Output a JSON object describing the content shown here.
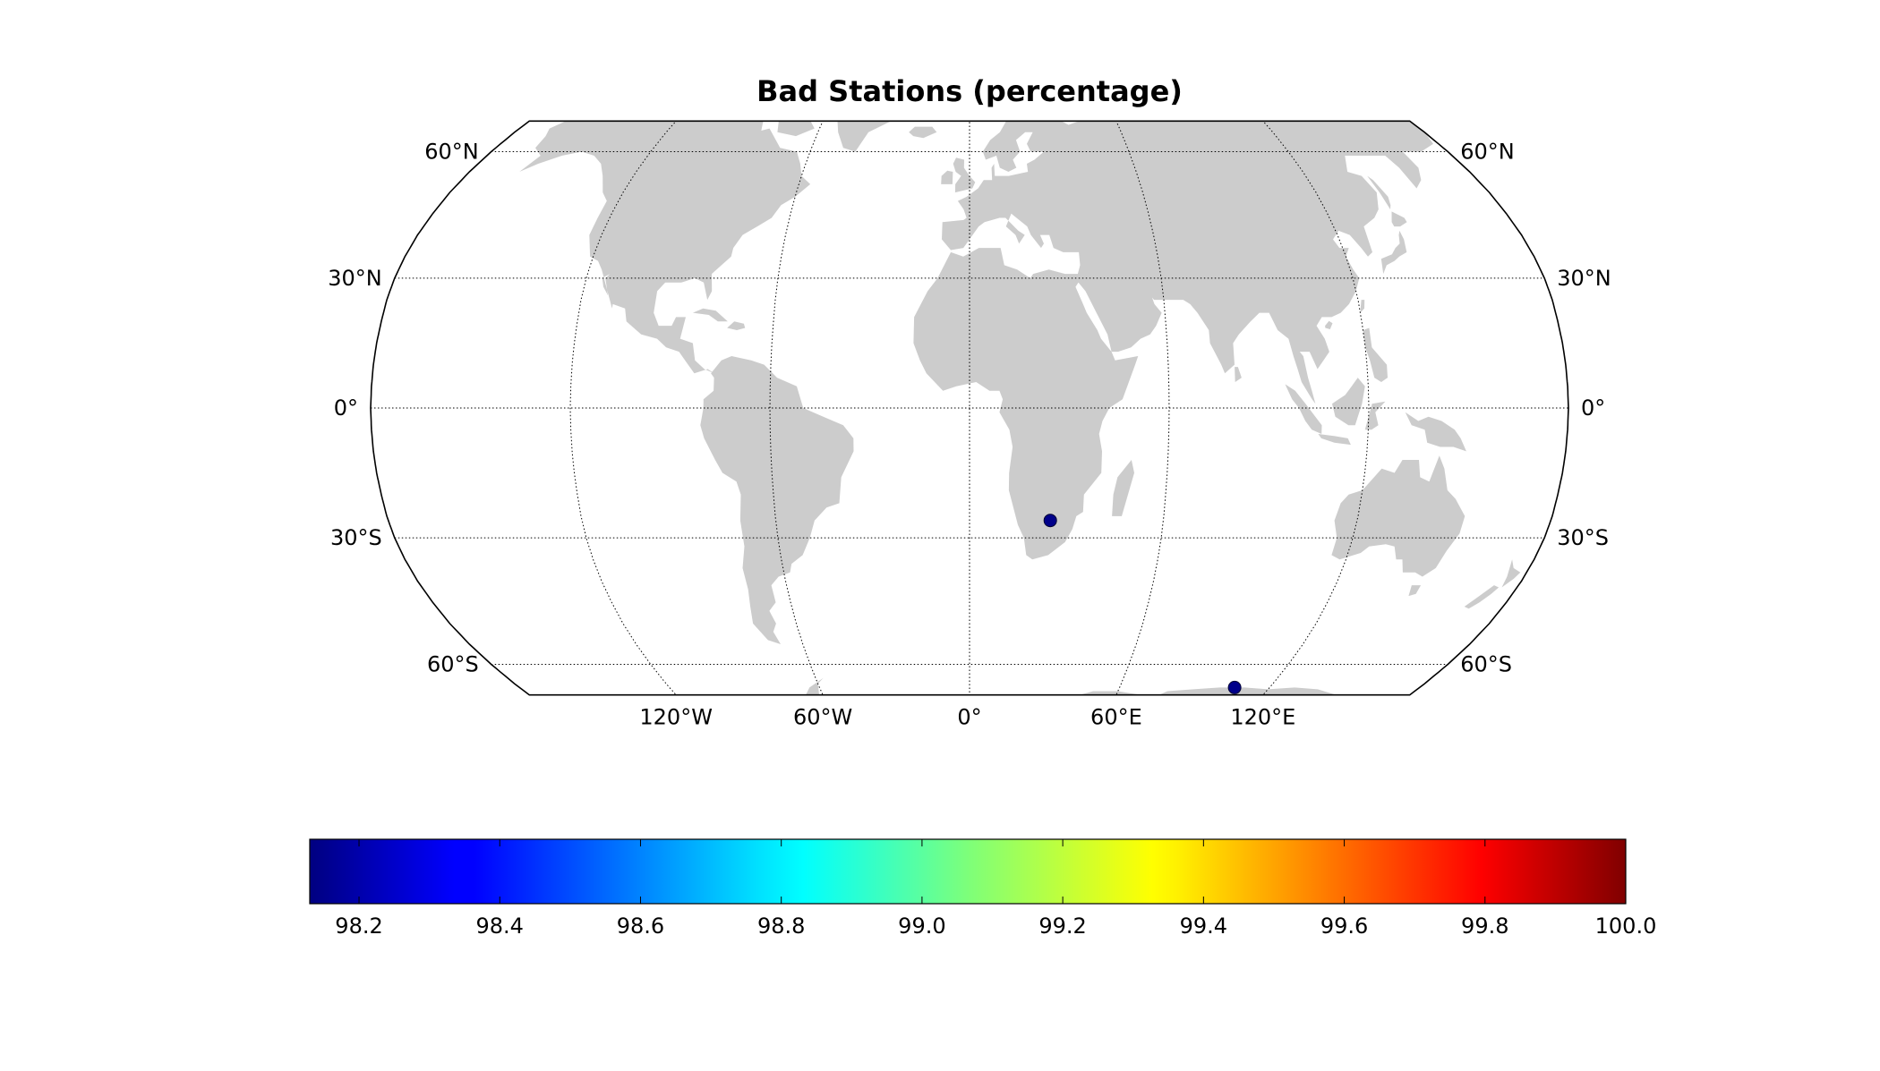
{
  "chart_data": {
    "type": "map",
    "title": "Bad Stations (percentage)",
    "projection": "robinson",
    "lat_range": [
      -90,
      90
    ],
    "lon_range": [
      -180,
      180
    ],
    "parallels": [
      60,
      30,
      0,
      -30,
      -60
    ],
    "parallel_labels": [
      "60°N",
      "30°N",
      "0°",
      "30°S",
      "60°S"
    ],
    "meridians": [
      -120,
      -60,
      0,
      60,
      120
    ],
    "meridian_labels": [
      "120°W",
      "60°W",
      "0°",
      "60°E",
      "120°E"
    ],
    "land_color": "#cccccc",
    "stations": [
      {
        "lon": 25,
        "lat": -26,
        "value": 98.15
      },
      {
        "lon": 106,
        "lat": -66,
        "value": 98.15
      }
    ],
    "colorbar": {
      "colormap": "jet",
      "vmin": 98.13,
      "vmax": 100.0,
      "ticks": [
        "98.2",
        "98.4",
        "98.6",
        "98.8",
        "99.0",
        "99.2",
        "99.4",
        "99.6",
        "99.8",
        "100.0"
      ],
      "tick_values": [
        98.2,
        98.4,
        98.6,
        98.8,
        99.0,
        99.2,
        99.4,
        99.6,
        99.8,
        100.0
      ],
      "orientation": "horizontal"
    }
  }
}
